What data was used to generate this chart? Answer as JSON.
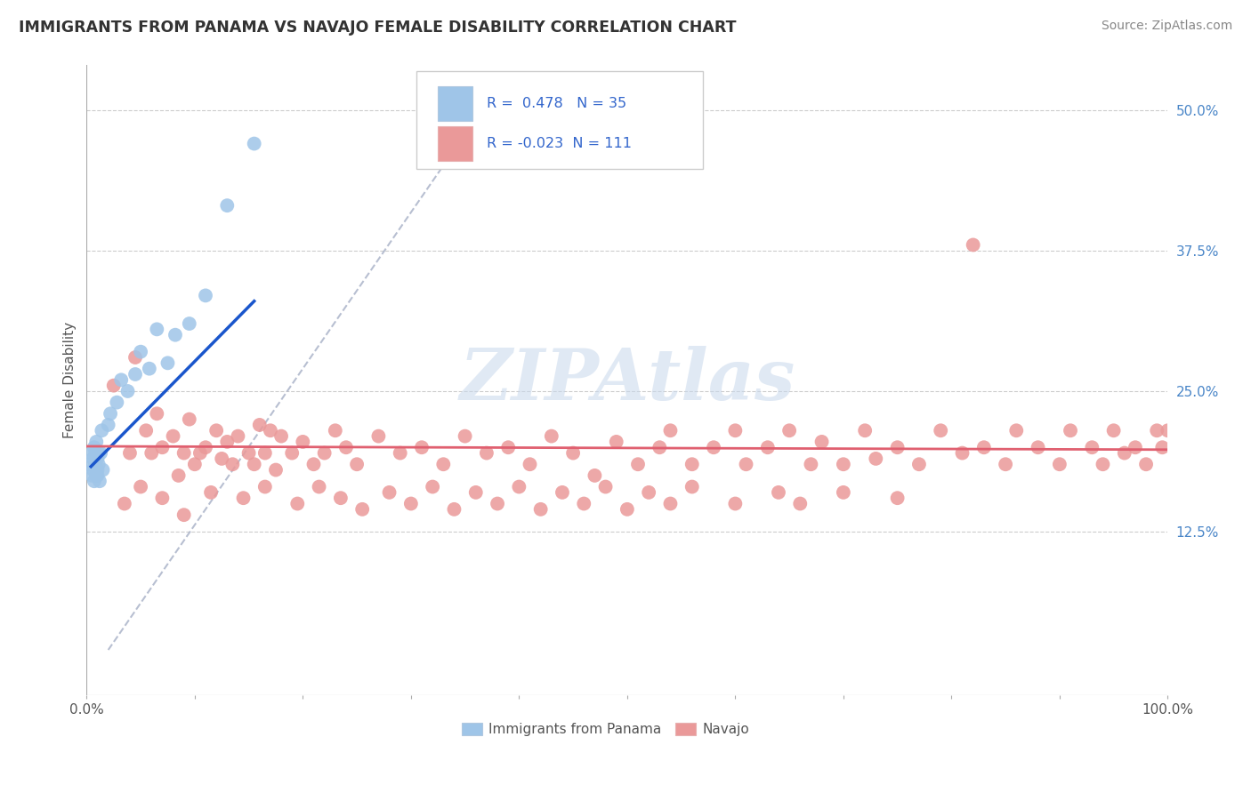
{
  "title": "IMMIGRANTS FROM PANAMA VS NAVAJO FEMALE DISABILITY CORRELATION CHART",
  "source": "Source: ZipAtlas.com",
  "ylabel": "Female Disability",
  "ytick_labels": [
    "",
    "12.5%",
    "25.0%",
    "37.5%",
    "50.0%"
  ],
  "ytick_values": [
    0.0,
    0.125,
    0.25,
    0.375,
    0.5
  ],
  "xlim": [
    0.0,
    1.0
  ],
  "ylim": [
    -0.02,
    0.54
  ],
  "legend_text1": "R =  0.478   N = 35",
  "legend_text2": "R = -0.023  N = 111",
  "blue_color": "#9fc5e8",
  "pink_color": "#ea9999",
  "blue_line_color": "#1a56cc",
  "pink_line_color": "#e06070",
  "diag_line_color": "#b0b8cc",
  "background_color": "#ffffff",
  "grid_color": "#cccccc",
  "watermark": "ZIPAtlas",
  "panama_x": [
    0.004,
    0.005,
    0.005,
    0.006,
    0.006,
    0.007,
    0.007,
    0.008,
    0.008,
    0.009,
    0.009,
    0.01,
    0.01,
    0.01,
    0.011,
    0.011,
    0.012,
    0.013,
    0.014,
    0.015,
    0.02,
    0.022,
    0.028,
    0.032,
    0.038,
    0.045,
    0.05,
    0.058,
    0.065,
    0.075,
    0.082,
    0.095,
    0.11,
    0.13,
    0.155
  ],
  "panama_y": [
    0.185,
    0.175,
    0.195,
    0.19,
    0.18,
    0.2,
    0.17,
    0.185,
    0.195,
    0.175,
    0.205,
    0.18,
    0.19,
    0.175,
    0.185,
    0.195,
    0.17,
    0.195,
    0.215,
    0.18,
    0.22,
    0.23,
    0.24,
    0.26,
    0.25,
    0.265,
    0.285,
    0.27,
    0.305,
    0.275,
    0.3,
    0.31,
    0.335,
    0.415,
    0.47
  ],
  "navajo_x": [
    0.025,
    0.04,
    0.045,
    0.055,
    0.06,
    0.065,
    0.07,
    0.08,
    0.085,
    0.09,
    0.095,
    0.1,
    0.105,
    0.11,
    0.12,
    0.125,
    0.13,
    0.135,
    0.14,
    0.15,
    0.155,
    0.16,
    0.165,
    0.17,
    0.175,
    0.18,
    0.19,
    0.2,
    0.21,
    0.22,
    0.23,
    0.24,
    0.25,
    0.27,
    0.29,
    0.31,
    0.33,
    0.35,
    0.37,
    0.39,
    0.41,
    0.43,
    0.45,
    0.47,
    0.49,
    0.51,
    0.53,
    0.54,
    0.56,
    0.58,
    0.6,
    0.61,
    0.63,
    0.65,
    0.67,
    0.68,
    0.7,
    0.72,
    0.73,
    0.75,
    0.77,
    0.79,
    0.81,
    0.83,
    0.85,
    0.86,
    0.88,
    0.9,
    0.91,
    0.93,
    0.94,
    0.95,
    0.96,
    0.97,
    0.98,
    0.99,
    0.995,
    1.0,
    0.035,
    0.05,
    0.07,
    0.09,
    0.115,
    0.145,
    0.165,
    0.195,
    0.215,
    0.235,
    0.255,
    0.28,
    0.3,
    0.32,
    0.34,
    0.36,
    0.38,
    0.4,
    0.42,
    0.44,
    0.46,
    0.48,
    0.5,
    0.52,
    0.54,
    0.56,
    0.6,
    0.64,
    0.66,
    0.7,
    0.75,
    0.82
  ],
  "navajo_y": [
    0.255,
    0.195,
    0.28,
    0.215,
    0.195,
    0.23,
    0.2,
    0.21,
    0.175,
    0.195,
    0.225,
    0.185,
    0.195,
    0.2,
    0.215,
    0.19,
    0.205,
    0.185,
    0.21,
    0.195,
    0.185,
    0.22,
    0.195,
    0.215,
    0.18,
    0.21,
    0.195,
    0.205,
    0.185,
    0.195,
    0.215,
    0.2,
    0.185,
    0.21,
    0.195,
    0.2,
    0.185,
    0.21,
    0.195,
    0.2,
    0.185,
    0.21,
    0.195,
    0.175,
    0.205,
    0.185,
    0.2,
    0.215,
    0.185,
    0.2,
    0.215,
    0.185,
    0.2,
    0.215,
    0.185,
    0.205,
    0.185,
    0.215,
    0.19,
    0.2,
    0.185,
    0.215,
    0.195,
    0.2,
    0.185,
    0.215,
    0.2,
    0.185,
    0.215,
    0.2,
    0.185,
    0.215,
    0.195,
    0.2,
    0.185,
    0.215,
    0.2,
    0.215,
    0.15,
    0.165,
    0.155,
    0.14,
    0.16,
    0.155,
    0.165,
    0.15,
    0.165,
    0.155,
    0.145,
    0.16,
    0.15,
    0.165,
    0.145,
    0.16,
    0.15,
    0.165,
    0.145,
    0.16,
    0.15,
    0.165,
    0.145,
    0.16,
    0.15,
    0.165,
    0.15,
    0.16,
    0.15,
    0.16,
    0.155,
    0.38
  ]
}
